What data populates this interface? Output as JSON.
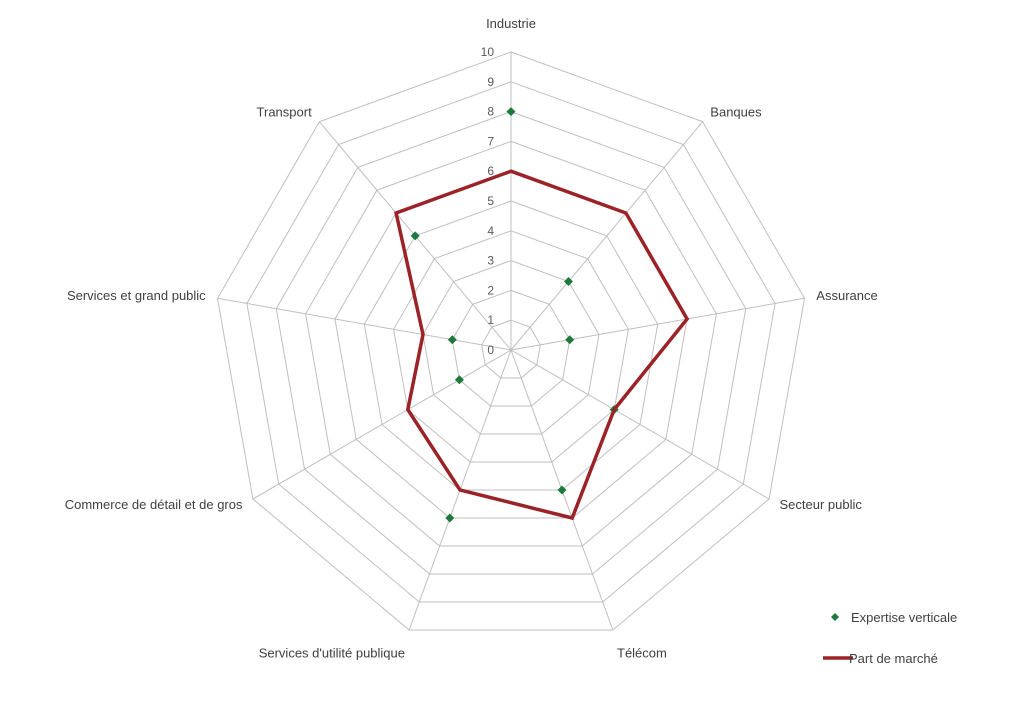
{
  "chart_data": {
    "type": "radar",
    "categories": [
      "Industrie",
      "Banques",
      "Assurance",
      "Secteur public",
      "Télécom",
      "Services d'utilité publique",
      "Commerce de détail et de gros",
      "Services et grand public",
      "Transport"
    ],
    "series": [
      {
        "name": "Expertise verticale",
        "marker": "diamond",
        "color": "#1e7a3c",
        "values": [
          8,
          3,
          2,
          4,
          5,
          6,
          2,
          2,
          5
        ]
      },
      {
        "name": "Part de marché",
        "marker": "line",
        "color": "#9b2226",
        "values": [
          6,
          6,
          6,
          4,
          6,
          5,
          4,
          3,
          6
        ]
      }
    ],
    "r_ticks": [
      "0",
      "1",
      "2",
      "3",
      "4",
      "5",
      "6",
      "7",
      "8",
      "9",
      "10"
    ],
    "rlim": [
      0,
      10
    ],
    "grid": true,
    "legend_position": "bottom-right"
  }
}
